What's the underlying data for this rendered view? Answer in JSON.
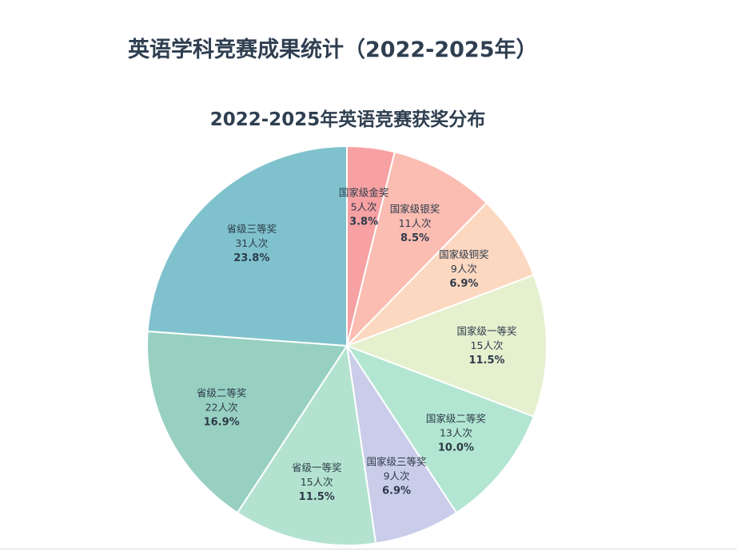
{
  "page_title": "英语学科竞赛成果统计（2022-2025年）",
  "chart_data": {
    "type": "pie",
    "title": "2022-2025年英语竞赛获奖分布",
    "unit": "人次",
    "slices": [
      {
        "label": "国家级金奖",
        "value": 5,
        "percent": "3.8%",
        "color": "#f7a1a3"
      },
      {
        "label": "国家级银奖",
        "value": 11,
        "percent": "8.5%",
        "color": "#fbbcb2"
      },
      {
        "label": "国家级铜奖",
        "value": 9,
        "percent": "6.9%",
        "color": "#fdd8c0"
      },
      {
        "label": "国家级一等奖",
        "value": 15,
        "percent": "11.5%",
        "color": "#e5f0cf"
      },
      {
        "label": "国家级二等奖",
        "value": 13,
        "percent": "10.0%",
        "color": "#b2e6d2"
      },
      {
        "label": "国家级三等奖",
        "value": 9,
        "percent": "6.9%",
        "color": "#c9cdea"
      },
      {
        "label": "省级一等奖",
        "value": 15,
        "percent": "11.5%",
        "color": "#b3e3d0"
      },
      {
        "label": "省级二等奖",
        "value": 22,
        "percent": "16.9%",
        "color": "#97d0c1"
      },
      {
        "label": "省级三等奖",
        "value": 31,
        "percent": "23.8%",
        "color": "#7fc2cd"
      }
    ],
    "start_angle_deg": 0,
    "direction": "clockwise",
    "legend": "none"
  }
}
